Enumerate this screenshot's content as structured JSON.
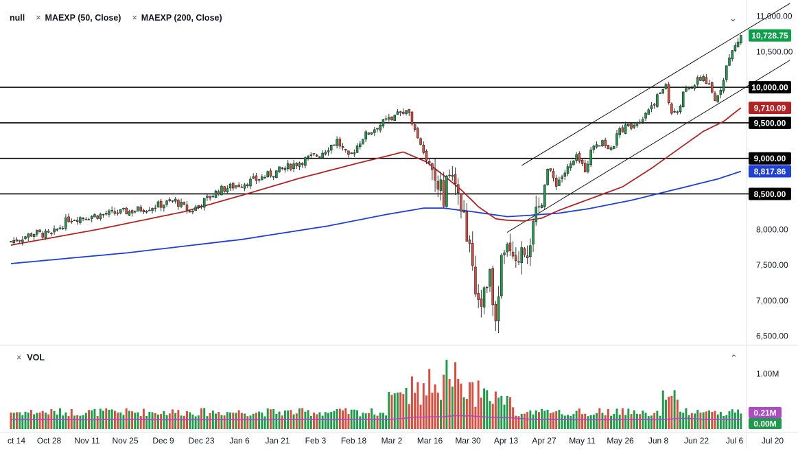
{
  "legend": {
    "symbol": "null",
    "ma50": "MAEXP (50, Close)",
    "ma200": "MAEXP (200, Close)",
    "vol": "VOL"
  },
  "colors": {
    "up": "#1a9c4a",
    "down": "#e04a3a",
    "ma50": "#b22222",
    "ma200": "#1f3fd6",
    "volma": "#b048c8",
    "hline": "#000000",
    "price_tag": "#0e9f4a"
  },
  "chart_data": [
    {
      "type": "candlestick",
      "x_ticks": [
        "ct 14",
        "Oct 28",
        "Nov 11",
        "Nov 25",
        "Dec 9",
        "Dec 23",
        "Jan 6",
        "Jan 21",
        "Feb 3",
        "Feb 18",
        "Mar 2",
        "Mar 16",
        "Mar 30",
        "Apr 13",
        "Apr 27",
        "May 11",
        "May 26",
        "Jun 8",
        "Jun 22",
        "Jul 6",
        "Jul 20"
      ],
      "y_ticks": [
        "11,000.00",
        "10,500.00",
        "8,000.00",
        "7,500.00",
        "7,000.00",
        "6,500.00"
      ],
      "ylim": [
        6400,
        11150
      ],
      "last_price": 10728.75,
      "last_price_label": "10,728.75",
      "horizontal_levels": [
        {
          "value": 10000,
          "label": "10,000.00"
        },
        {
          "value": 9500,
          "label": "9,500.00"
        },
        {
          "value": 9000,
          "label": "9,000.00"
        },
        {
          "value": 8500,
          "label": "8,500.00"
        }
      ],
      "ma50_last": 9710.09,
      "ma50_label": "9,710.09",
      "ma200_last": 8817.86,
      "ma200_label": "8,817.86",
      "close_path": [
        [
          0,
          7830
        ],
        [
          8,
          7950
        ],
        [
          14,
          7920
        ],
        [
          20,
          8150
        ],
        [
          30,
          8200
        ],
        [
          42,
          8260
        ],
        [
          50,
          8330
        ],
        [
          57,
          8400
        ],
        [
          62,
          8250
        ],
        [
          66,
          8370
        ],
        [
          72,
          8550
        ],
        [
          78,
          8620
        ],
        [
          85,
          8700
        ],
        [
          92,
          8810
        ],
        [
          100,
          8950
        ],
        [
          107,
          9060
        ],
        [
          113,
          9250
        ],
        [
          117,
          9000
        ],
        [
          122,
          9300
        ],
        [
          127,
          9450
        ],
        [
          133,
          9600
        ],
        [
          137,
          9700
        ],
        [
          140,
          9450
        ],
        [
          144,
          9000
        ],
        [
          147,
          8750
        ],
        [
          150,
          8450
        ],
        [
          152,
          8800
        ],
        [
          154,
          8650
        ],
        [
          156,
          8200
        ],
        [
          159,
          7900
        ],
        [
          161,
          7250
        ],
        [
          163,
          7000
        ],
        [
          166,
          7300
        ],
        [
          168,
          6880
        ],
        [
          170,
          7500
        ],
        [
          173,
          7800
        ],
        [
          175,
          7450
        ],
        [
          177,
          7800
        ],
        [
          179,
          7750
        ],
        [
          181,
          8000
        ],
        [
          183,
          8300
        ],
        [
          186,
          8850
        ],
        [
          189,
          8650
        ],
        [
          192,
          8800
        ],
        [
          196,
          9000
        ],
        [
          199,
          8850
        ],
        [
          202,
          9200
        ],
        [
          205,
          9250
        ],
        [
          208,
          9100
        ],
        [
          211,
          9400
        ],
        [
          214,
          9450
        ],
        [
          218,
          9550
        ],
        [
          221,
          9700
        ],
        [
          224,
          9850
        ],
        [
          227,
          10050
        ],
        [
          229,
          9600
        ],
        [
          231,
          9650
        ],
        [
          233,
          9900
        ],
        [
          237,
          10050
        ],
        [
          240,
          10150
        ],
        [
          242,
          10000
        ],
        [
          244,
          9800
        ],
        [
          246,
          10000
        ],
        [
          248,
          10300
        ],
        [
          250,
          10500
        ],
        [
          252,
          10650
        ],
        [
          253,
          10728.75
        ]
      ],
      "ma50_path": [
        [
          0,
          7780
        ],
        [
          30,
          8000
        ],
        [
          60,
          8250
        ],
        [
          80,
          8480
        ],
        [
          100,
          8720
        ],
        [
          120,
          8930
        ],
        [
          136,
          9090
        ],
        [
          144,
          8950
        ],
        [
          150,
          8760
        ],
        [
          156,
          8560
        ],
        [
          162,
          8320
        ],
        [
          168,
          8150
        ],
        [
          172,
          8130
        ],
        [
          178,
          8120
        ],
        [
          184,
          8160
        ],
        [
          190,
          8270
        ],
        [
          200,
          8420
        ],
        [
          212,
          8600
        ],
        [
          222,
          8860
        ],
        [
          232,
          9150
        ],
        [
          240,
          9380
        ],
        [
          247,
          9520
        ],
        [
          253,
          9710.09
        ]
      ],
      "ma200_path": [
        [
          0,
          7520
        ],
        [
          40,
          7670
        ],
        [
          80,
          7860
        ],
        [
          110,
          8050
        ],
        [
          130,
          8210
        ],
        [
          143,
          8300
        ],
        [
          150,
          8300
        ],
        [
          160,
          8250
        ],
        [
          172,
          8180
        ],
        [
          180,
          8200
        ],
        [
          190,
          8230
        ],
        [
          200,
          8290
        ],
        [
          215,
          8410
        ],
        [
          230,
          8560
        ],
        [
          245,
          8710
        ],
        [
          253,
          8817.86
        ]
      ],
      "channel_upper": [
        [
          177,
          8900
        ],
        [
          270,
          11180
        ]
      ],
      "channel_lower": [
        [
          172,
          7960
        ],
        [
          270,
          10380
        ]
      ]
    },
    {
      "type": "bar",
      "title": "VOL",
      "y_ticks": [
        "1.00M"
      ],
      "ylim": [
        0,
        1.35
      ],
      "vol_ma_last": 0.21,
      "vol_ma_label": "0.21M",
      "vol_last_label": "0.00M"
    }
  ]
}
